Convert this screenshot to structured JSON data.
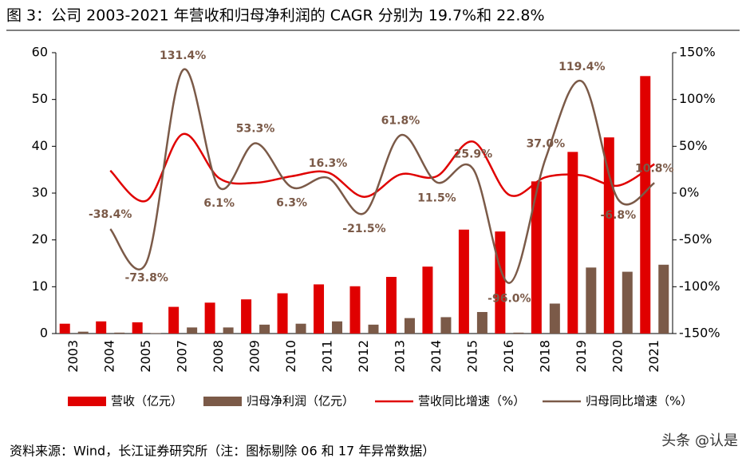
{
  "chart_data": {
    "type": "combo",
    "title": "图 3：公司 2003-2021 年营收和归母净利润的 CAGR 分别为 19.7%和 22.8%",
    "source": "资料来源：Wind，长江证券研究所（注：图标剔除 06 和 17 年异常数据）",
    "watermark": "头条 @认是",
    "categories": [
      "2003",
      "2004",
      "2005",
      "2007",
      "2008",
      "2009",
      "2010",
      "2011",
      "2012",
      "2013",
      "2014",
      "2015",
      "2016",
      "2018",
      "2019",
      "2020",
      "2021"
    ],
    "series": [
      {
        "name": "营收（亿元）",
        "type": "bar",
        "color": "#e00000",
        "values": [
          2.1,
          2.6,
          2.4,
          5.7,
          6.6,
          7.3,
          8.6,
          10.5,
          10.1,
          12.1,
          14.3,
          22.2,
          21.8,
          32.5,
          38.8,
          41.9,
          55.0
        ]
      },
      {
        "name": "归母净利润（亿元）",
        "type": "bar",
        "color": "#7b5a48",
        "values": [
          0.4,
          0.2,
          0.1,
          1.3,
          1.3,
          1.9,
          2.1,
          2.6,
          1.9,
          3.3,
          3.5,
          4.6,
          0.2,
          6.4,
          14.1,
          13.2,
          14.7
        ]
      },
      {
        "name": "营收同比增速（%）",
        "type": "line",
        "axis": "y2",
        "color": "#e00000",
        "values": [
          null,
          24,
          -8,
          63,
          16,
          11,
          18,
          22,
          -4,
          20,
          18,
          55,
          -2,
          17,
          19,
          8,
          31
        ]
      },
      {
        "name": "归母同比增速（%）",
        "type": "line",
        "axis": "y2",
        "color": "#7b5a48",
        "values": [
          null,
          -38.4,
          -73.8,
          131.4,
          6.1,
          53.3,
          6.3,
          16.3,
          -21.5,
          61.8,
          11.5,
          25.9,
          -96.0,
          37.0,
          119.4,
          -6.8,
          10.8
        ],
        "value_labels": [
          null,
          "-38.4%",
          "-73.8%",
          "131.4%",
          "6.1%",
          "53.3%",
          "6.3%",
          "16.3%",
          "-21.5%",
          "61.8%",
          "11.5%",
          "25.9%",
          "-96.0%",
          "37.0%",
          "119.4%",
          "-6.8%",
          "10.8%"
        ]
      }
    ],
    "ylim": [
      0,
      60
    ],
    "yticks": [
      0,
      10,
      20,
      30,
      40,
      50,
      60
    ],
    "y2lim": [
      -150,
      150
    ],
    "y2ticks": [
      {
        "value": -150,
        "label": "-150%"
      },
      {
        "value": -100,
        "label": "-100%"
      },
      {
        "value": -50,
        "label": "-50%"
      },
      {
        "value": 0,
        "label": "0%"
      },
      {
        "value": 50,
        "label": "50%"
      },
      {
        "value": 100,
        "label": "100%"
      },
      {
        "value": 150,
        "label": "150%"
      }
    ]
  }
}
